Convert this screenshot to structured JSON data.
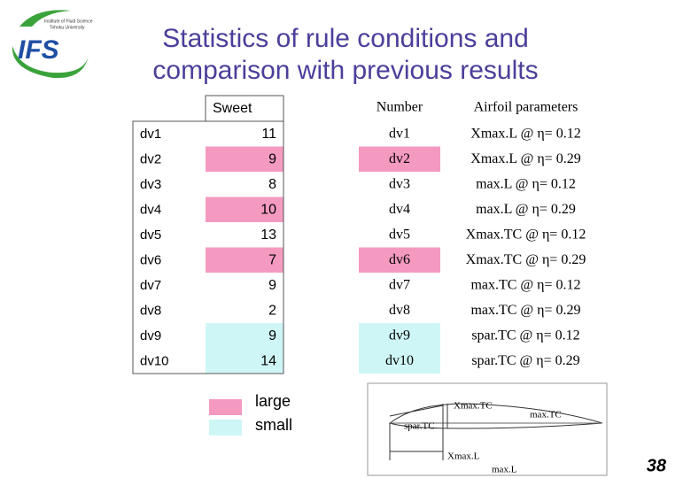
{
  "logo": {
    "text": "IFS",
    "caption": [
      "Institute of Fluid Science",
      "Tohoku University"
    ]
  },
  "title": [
    "Statistics of rule conditions and",
    "comparison with previous results"
  ],
  "sweet_table": {
    "header": "Sweet",
    "rows": [
      {
        "name": "dv1",
        "value": 11
      },
      {
        "name": "dv2",
        "value": 9,
        "level": "large"
      },
      {
        "name": "dv3",
        "value": 8
      },
      {
        "name": "dv4",
        "value": 10,
        "level": "large"
      },
      {
        "name": "dv5",
        "value": 13
      },
      {
        "name": "dv6",
        "value": 7,
        "level": "large"
      },
      {
        "name": "dv7",
        "value": 9
      },
      {
        "name": "dv8",
        "value": 2
      },
      {
        "name": "dv9",
        "value": 9,
        "level": "small"
      },
      {
        "name": "dv10",
        "value": 14,
        "level": "small"
      }
    ]
  },
  "legend": [
    {
      "label": "large",
      "color": "#f49ac1"
    },
    {
      "label": "small",
      "color": "#cff6f7"
    }
  ],
  "param_table": {
    "header": [
      "Number",
      "Airfoil parameters"
    ],
    "rows": [
      {
        "cells": [
          "dv1",
          "Xmax.L @ η= 0.12"
        ]
      },
      {
        "cells": [
          "dv2",
          "Xmax.L @ η= 0.29"
        ],
        "level": "large"
      },
      {
        "cells": [
          "dv3",
          "max.L @ η= 0.12"
        ]
      },
      {
        "cells": [
          "dv4",
          "max.L @ η= 0.29"
        ]
      },
      {
        "cells": [
          "dv5",
          "Xmax.TC @ η= 0.12"
        ]
      },
      {
        "cells": [
          "dv6",
          "Xmax.TC @ η= 0.29"
        ],
        "level": "large"
      },
      {
        "cells": [
          "dv7",
          "max.TC @ η= 0.12"
        ]
      },
      {
        "cells": [
          "dv8",
          "max.TC @ η= 0.29"
        ]
      },
      {
        "cells": [
          "dv9",
          "spar.TC @ η= 0.12"
        ],
        "level": "small"
      },
      {
        "cells": [
          "dv10",
          "spar.TC @ η= 0.29"
        ],
        "level": "small"
      }
    ]
  },
  "diagram": {
    "labels": [
      "Xmax.TC",
      "max.TC",
      "spar.TC",
      "Xmax.L",
      "max.L"
    ]
  },
  "page_number": "38"
}
